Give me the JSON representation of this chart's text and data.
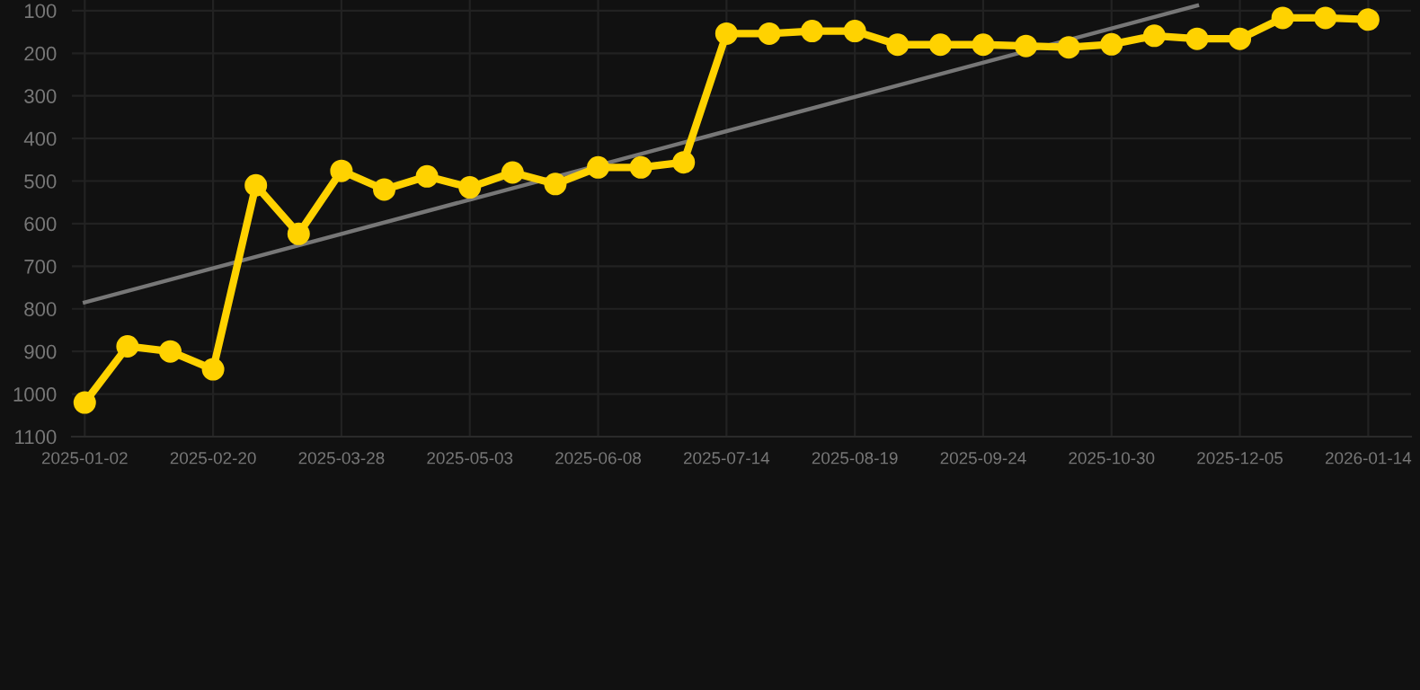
{
  "chart_data": {
    "type": "line",
    "categories": [
      "2025-01-02",
      null,
      null,
      "2025-02-20",
      null,
      null,
      "2025-03-28",
      null,
      null,
      "2025-05-03",
      null,
      null,
      "2025-06-08",
      null,
      null,
      "2025-07-14",
      null,
      null,
      "2025-08-19",
      null,
      null,
      "2025-09-24",
      null,
      null,
      "2025-10-30",
      null,
      null,
      "2025-12-05",
      null,
      null,
      "2026-01-14"
    ],
    "series": [
      {
        "color": "#ffd200",
        "marker": "circle",
        "values": [
          1020,
          888,
          900,
          942,
          510,
          624,
          476,
          520,
          489,
          515,
          480,
          507,
          468,
          468,
          456,
          154,
          154,
          148,
          148,
          180,
          180,
          180,
          183,
          186,
          179,
          159,
          166,
          166,
          117,
          117,
          121
        ]
      },
      {
        "color": "#777777",
        "marker": "none",
        "values": [
          785,
          null,
          null,
          null,
          null,
          null,
          null,
          null,
          null,
          null,
          null,
          null,
          null,
          null,
          null,
          null,
          null,
          null,
          null,
          null,
          null,
          null,
          null,
          null,
          null,
          null,
          88,
          null,
          null,
          null,
          null
        ]
      }
    ],
    "ylim": [
      1100,
      75
    ],
    "yticks": [
      100,
      200,
      300,
      400,
      500,
      600,
      700,
      800,
      900,
      1000,
      1100
    ],
    "grid": true,
    "line_style": "solid"
  }
}
